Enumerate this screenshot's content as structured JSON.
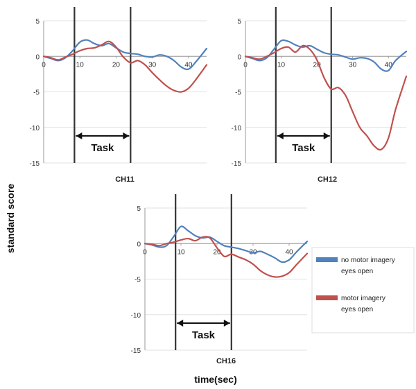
{
  "figure": {
    "ylabel": "standard score",
    "xlabel": "time(sec)"
  },
  "legend": {
    "items": [
      {
        "label_line1": "no motor imagery",
        "label_line2": "eyes open",
        "color": "#4f81bd"
      },
      {
        "label_line1": "motor imagery",
        "label_line2": "eyes open",
        "color": "#c0504d"
      }
    ]
  },
  "colors": {
    "no_motor_imagery": "#4f81bd",
    "motor_imagery": "#c0504d",
    "task_lines": "#333333"
  },
  "chart_data": [
    {
      "type": "line",
      "title": "CH11",
      "xlim": [
        0,
        45
      ],
      "ylim": [
        -15,
        5
      ],
      "xticks": [
        0,
        10,
        20,
        30,
        40
      ],
      "yticks": [
        5,
        0,
        -5,
        -10,
        -15
      ],
      "task": {
        "label": "Task",
        "start": 8.5,
        "end": 24
      },
      "series": [
        {
          "name": "no motor imagery eyes open",
          "color": "#4f81bd",
          "x": [
            0,
            2,
            4,
            6,
            8,
            10,
            12,
            14,
            16,
            18,
            20,
            22,
            24,
            26,
            28,
            30,
            32,
            34,
            36,
            38,
            40,
            42,
            45
          ],
          "y": [
            0,
            -0.3,
            -0.6,
            -0.2,
            0.8,
            2.0,
            2.3,
            1.8,
            1.5,
            1.8,
            1.2,
            0.6,
            0.4,
            0.3,
            0.0,
            -0.1,
            0.2,
            0.0,
            -0.6,
            -1.5,
            -1.8,
            -0.8,
            1.1
          ]
        },
        {
          "name": "motor imagery eyes open",
          "color": "#c0504d",
          "x": [
            0,
            2,
            4,
            6,
            8,
            10,
            12,
            14,
            16,
            18,
            20,
            22,
            24,
            26,
            28,
            30,
            32,
            34,
            36,
            38,
            40,
            42,
            45
          ],
          "y": [
            0,
            -0.2,
            -0.5,
            -0.1,
            0.3,
            0.8,
            1.1,
            1.2,
            1.6,
            2.1,
            1.3,
            -0.1,
            -0.9,
            -0.6,
            -1.2,
            -2.3,
            -3.3,
            -4.2,
            -4.8,
            -5.0,
            -4.5,
            -3.3,
            -1.2
          ]
        }
      ]
    },
    {
      "type": "line",
      "title": "CH12",
      "xlim": [
        0,
        45
      ],
      "ylim": [
        -15,
        5
      ],
      "xticks": [
        0,
        10,
        20,
        30,
        40
      ],
      "yticks": [
        5,
        0,
        -5,
        -10,
        -15
      ],
      "task": {
        "label": "Task",
        "start": 8.5,
        "end": 24
      },
      "series": [
        {
          "name": "no motor imagery eyes open",
          "color": "#4f81bd",
          "x": [
            0,
            2,
            4,
            6,
            8,
            10,
            12,
            14,
            16,
            18,
            20,
            22,
            24,
            26,
            28,
            30,
            32,
            34,
            36,
            38,
            40,
            42,
            45
          ],
          "y": [
            0,
            -0.3,
            -0.6,
            -0.2,
            1.0,
            2.2,
            2.1,
            1.6,
            1.3,
            1.5,
            1.0,
            0.5,
            0.3,
            0.2,
            -0.1,
            -0.4,
            -0.2,
            -0.3,
            -0.8,
            -1.8,
            -2.0,
            -0.6,
            0.7
          ]
        },
        {
          "name": "motor imagery eyes open",
          "color": "#c0504d",
          "x": [
            0,
            2,
            4,
            6,
            8,
            10,
            12,
            14,
            16,
            18,
            20,
            22,
            24,
            26,
            28,
            30,
            32,
            34,
            36,
            38,
            40,
            42,
            45
          ],
          "y": [
            0,
            -0.2,
            -0.4,
            0.0,
            0.5,
            1.1,
            1.3,
            0.6,
            1.5,
            1.0,
            -0.5,
            -3.0,
            -4.6,
            -4.4,
            -5.5,
            -7.8,
            -10.0,
            -11.2,
            -12.6,
            -13.1,
            -11.5,
            -7.5,
            -2.8
          ]
        }
      ]
    },
    {
      "type": "line",
      "title": "CH16",
      "xlim": [
        0,
        45
      ],
      "ylim": [
        -15,
        5
      ],
      "xticks": [
        0,
        10,
        20,
        30,
        40
      ],
      "yticks": [
        5,
        0,
        -5,
        -10,
        -15
      ],
      "task": {
        "label": "Task",
        "start": 8.5,
        "end": 24
      },
      "series": [
        {
          "name": "no motor imagery eyes open",
          "color": "#4f81bd",
          "x": [
            0,
            2,
            4,
            6,
            8,
            10,
            12,
            14,
            16,
            18,
            20,
            22,
            24,
            26,
            28,
            30,
            32,
            34,
            36,
            38,
            40,
            42,
            45
          ],
          "y": [
            0,
            -0.2,
            -0.5,
            -0.3,
            1.0,
            2.4,
            1.8,
            1.1,
            0.8,
            0.9,
            0.3,
            -0.3,
            -0.5,
            -0.7,
            -1.0,
            -1.3,
            -1.1,
            -1.5,
            -2.0,
            -2.6,
            -2.3,
            -1.2,
            0.3
          ]
        },
        {
          "name": "motor imagery eyes open",
          "color": "#c0504d",
          "x": [
            0,
            2,
            4,
            6,
            8,
            10,
            12,
            14,
            16,
            18,
            20,
            22,
            24,
            26,
            28,
            30,
            32,
            34,
            36,
            38,
            40,
            42,
            45
          ],
          "y": [
            0,
            -0.1,
            -0.3,
            0.0,
            0.2,
            0.5,
            0.7,
            0.4,
            0.9,
            0.8,
            -0.6,
            -1.8,
            -1.5,
            -1.9,
            -2.3,
            -2.9,
            -3.8,
            -4.4,
            -4.7,
            -4.6,
            -4.1,
            -3.0,
            -1.4
          ]
        }
      ]
    }
  ]
}
